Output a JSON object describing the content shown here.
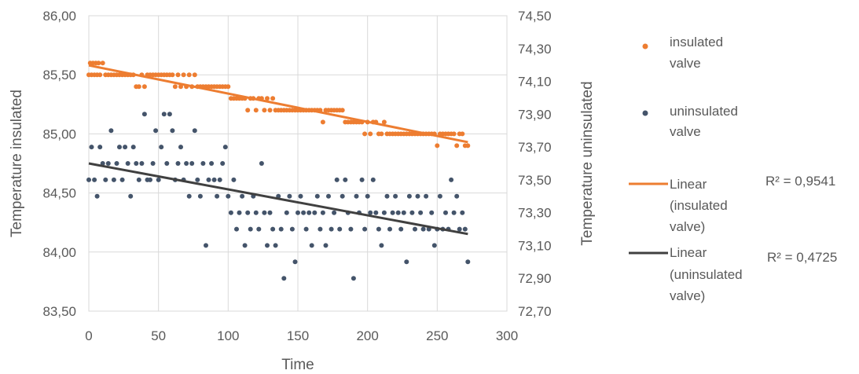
{
  "chart_data": {
    "type": "scatter",
    "x_label": "Time",
    "y_label_left": "Temperature insulated",
    "y_label_right": "Temperature uninsulated",
    "x_range": [
      0,
      300
    ],
    "x_ticks": [
      "0",
      "50",
      "100",
      "150",
      "200",
      "250",
      "300"
    ],
    "y_left_range": [
      83.5,
      86.0
    ],
    "y_left_ticks": [
      "83,50",
      "84,00",
      "84,50",
      "85,00",
      "85,50",
      "86,00"
    ],
    "y_right_range": [
      72.7,
      74.5
    ],
    "y_right_ticks": [
      "72,70",
      "72,90",
      "73,10",
      "73,30",
      "73,50",
      "73,70",
      "73,90",
      "74,10",
      "74,30",
      "74,50"
    ],
    "grid": true,
    "legend_position": "right",
    "colors": {
      "insulated": "#ED7D31",
      "uninsulated": "#44546A",
      "trend_uninsulated": "#404040",
      "grid": "#D9D9D9"
    },
    "series": [
      {
        "name": "insulated valve",
        "axis": "left",
        "points": [
          [
            0,
            85.5
          ],
          [
            1,
            85.6
          ],
          [
            2,
            85.5
          ],
          [
            3,
            85.6
          ],
          [
            4,
            85.5
          ],
          [
            5,
            85.6
          ],
          [
            6,
            85.5
          ],
          [
            7,
            85.6
          ],
          [
            8,
            85.5
          ],
          [
            10,
            85.6
          ],
          [
            12,
            85.5
          ],
          [
            14,
            85.5
          ],
          [
            16,
            85.5
          ],
          [
            18,
            85.5
          ],
          [
            20,
            85.5
          ],
          [
            22,
            85.5
          ],
          [
            24,
            85.5
          ],
          [
            26,
            85.5
          ],
          [
            28,
            85.5
          ],
          [
            30,
            85.5
          ],
          [
            32,
            85.5
          ],
          [
            34,
            85.4
          ],
          [
            36,
            85.4
          ],
          [
            38,
            85.5
          ],
          [
            40,
            85.4
          ],
          [
            42,
            85.5
          ],
          [
            44,
            85.5
          ],
          [
            46,
            85.5
          ],
          [
            48,
            85.5
          ],
          [
            50,
            85.5
          ],
          [
            52,
            85.5
          ],
          [
            54,
            85.5
          ],
          [
            56,
            85.5
          ],
          [
            58,
            85.5
          ],
          [
            60,
            85.5
          ],
          [
            62,
            85.4
          ],
          [
            64,
            85.5
          ],
          [
            66,
            85.4
          ],
          [
            68,
            85.5
          ],
          [
            70,
            85.4
          ],
          [
            72,
            85.5
          ],
          [
            74,
            85.4
          ],
          [
            76,
            85.5
          ],
          [
            78,
            85.4
          ],
          [
            80,
            85.4
          ],
          [
            82,
            85.4
          ],
          [
            84,
            85.4
          ],
          [
            86,
            85.4
          ],
          [
            88,
            85.4
          ],
          [
            90,
            85.4
          ],
          [
            92,
            85.4
          ],
          [
            94,
            85.4
          ],
          [
            96,
            85.4
          ],
          [
            98,
            85.4
          ],
          [
            100,
            85.4
          ],
          [
            102,
            85.3
          ],
          [
            104,
            85.3
          ],
          [
            106,
            85.3
          ],
          [
            108,
            85.3
          ],
          [
            110,
            85.3
          ],
          [
            112,
            85.3
          ],
          [
            114,
            85.2
          ],
          [
            116,
            85.3
          ],
          [
            118,
            85.3
          ],
          [
            120,
            85.2
          ],
          [
            122,
            85.3
          ],
          [
            124,
            85.3
          ],
          [
            126,
            85.2
          ],
          [
            128,
            85.3
          ],
          [
            130,
            85.2
          ],
          [
            132,
            85.3
          ],
          [
            134,
            85.2
          ],
          [
            136,
            85.2
          ],
          [
            138,
            85.2
          ],
          [
            140,
            85.2
          ],
          [
            142,
            85.2
          ],
          [
            144,
            85.2
          ],
          [
            146,
            85.2
          ],
          [
            148,
            85.2
          ],
          [
            150,
            85.2
          ],
          [
            152,
            85.2
          ],
          [
            154,
            85.2
          ],
          [
            156,
            85.2
          ],
          [
            158,
            85.2
          ],
          [
            160,
            85.2
          ],
          [
            162,
            85.2
          ],
          [
            164,
            85.2
          ],
          [
            166,
            85.2
          ],
          [
            168,
            85.1
          ],
          [
            170,
            85.2
          ],
          [
            172,
            85.2
          ],
          [
            174,
            85.2
          ],
          [
            176,
            85.2
          ],
          [
            178,
            85.2
          ],
          [
            180,
            85.2
          ],
          [
            182,
            85.2
          ],
          [
            184,
            85.1
          ],
          [
            186,
            85.1
          ],
          [
            188,
            85.1
          ],
          [
            190,
            85.1
          ],
          [
            192,
            85.1
          ],
          [
            194,
            85.1
          ],
          [
            196,
            85.1
          ],
          [
            198,
            85.0
          ],
          [
            200,
            85.1
          ],
          [
            202,
            85.0
          ],
          [
            204,
            85.1
          ],
          [
            206,
            85.1
          ],
          [
            208,
            85.0
          ],
          [
            210,
            85.0
          ],
          [
            212,
            85.1
          ],
          [
            214,
            85.0
          ],
          [
            216,
            85.0
          ],
          [
            218,
            85.0
          ],
          [
            220,
            85.0
          ],
          [
            222,
            85.0
          ],
          [
            224,
            85.0
          ],
          [
            226,
            85.0
          ],
          [
            228,
            85.0
          ],
          [
            230,
            85.0
          ],
          [
            232,
            85.0
          ],
          [
            234,
            85.0
          ],
          [
            236,
            85.0
          ],
          [
            238,
            85.0
          ],
          [
            240,
            85.0
          ],
          [
            242,
            85.0
          ],
          [
            244,
            85.0
          ],
          [
            246,
            85.0
          ],
          [
            248,
            85.0
          ],
          [
            250,
            84.9
          ],
          [
            252,
            85.0
          ],
          [
            254,
            85.0
          ],
          [
            256,
            85.0
          ],
          [
            258,
            85.0
          ],
          [
            260,
            85.0
          ],
          [
            262,
            85.0
          ],
          [
            264,
            84.9
          ],
          [
            266,
            85.0
          ],
          [
            268,
            85.0
          ],
          [
            270,
            84.9
          ],
          [
            272,
            84.9
          ]
        ]
      },
      {
        "name": "uninsulated valve",
        "axis": "right",
        "points": [
          [
            0,
            73.5
          ],
          [
            2,
            73.7
          ],
          [
            4,
            73.5
          ],
          [
            6,
            73.4
          ],
          [
            8,
            73.7
          ],
          [
            10,
            73.6
          ],
          [
            12,
            73.5
          ],
          [
            14,
            73.6
          ],
          [
            16,
            73.8
          ],
          [
            18,
            73.5
          ],
          [
            20,
            73.6
          ],
          [
            22,
            73.7
          ],
          [
            24,
            73.5
          ],
          [
            26,
            73.7
          ],
          [
            28,
            73.6
          ],
          [
            30,
            73.4
          ],
          [
            32,
            73.7
          ],
          [
            34,
            73.6
          ],
          [
            36,
            73.5
          ],
          [
            38,
            73.6
          ],
          [
            40,
            73.9
          ],
          [
            42,
            73.5
          ],
          [
            44,
            73.5
          ],
          [
            46,
            73.6
          ],
          [
            48,
            73.8
          ],
          [
            50,
            73.5
          ],
          [
            52,
            73.7
          ],
          [
            54,
            73.9
          ],
          [
            56,
            73.6
          ],
          [
            58,
            73.9
          ],
          [
            60,
            73.8
          ],
          [
            62,
            73.5
          ],
          [
            64,
            73.6
          ],
          [
            66,
            73.7
          ],
          [
            68,
            73.5
          ],
          [
            70,
            73.6
          ],
          [
            72,
            73.4
          ],
          [
            74,
            73.6
          ],
          [
            76,
            73.8
          ],
          [
            78,
            73.5
          ],
          [
            80,
            73.4
          ],
          [
            82,
            73.6
          ],
          [
            84,
            73.1
          ],
          [
            86,
            73.5
          ],
          [
            88,
            73.6
          ],
          [
            90,
            73.5
          ],
          [
            92,
            73.4
          ],
          [
            94,
            73.5
          ],
          [
            96,
            73.6
          ],
          [
            98,
            73.7
          ],
          [
            100,
            73.4
          ],
          [
            102,
            73.3
          ],
          [
            104,
            73.5
          ],
          [
            106,
            73.2
          ],
          [
            108,
            73.3
          ],
          [
            110,
            73.4
          ],
          [
            112,
            73.1
          ],
          [
            114,
            73.3
          ],
          [
            116,
            73.2
          ],
          [
            118,
            73.4
          ],
          [
            120,
            73.3
          ],
          [
            122,
            73.2
          ],
          [
            124,
            73.6
          ],
          [
            126,
            73.3
          ],
          [
            128,
            73.1
          ],
          [
            130,
            73.3
          ],
          [
            132,
            73.2
          ],
          [
            134,
            73.1
          ],
          [
            136,
            73.4
          ],
          [
            138,
            73.2
          ],
          [
            140,
            72.9
          ],
          [
            142,
            73.3
          ],
          [
            144,
            73.4
          ],
          [
            146,
            73.2
          ],
          [
            148,
            73.0
          ],
          [
            150,
            73.3
          ],
          [
            152,
            73.4
          ],
          [
            154,
            73.3
          ],
          [
            156,
            73.2
          ],
          [
            158,
            73.3
          ],
          [
            160,
            73.1
          ],
          [
            162,
            73.3
          ],
          [
            164,
            73.4
          ],
          [
            166,
            73.2
          ],
          [
            168,
            73.3
          ],
          [
            170,
            73.1
          ],
          [
            172,
            73.4
          ],
          [
            174,
            73.2
          ],
          [
            176,
            73.3
          ],
          [
            178,
            73.5
          ],
          [
            180,
            73.2
          ],
          [
            182,
            73.4
          ],
          [
            184,
            73.5
          ],
          [
            186,
            73.3
          ],
          [
            188,
            73.2
          ],
          [
            190,
            72.9
          ],
          [
            192,
            73.4
          ],
          [
            194,
            73.3
          ],
          [
            196,
            73.5
          ],
          [
            198,
            73.2
          ],
          [
            200,
            73.4
          ],
          [
            202,
            73.3
          ],
          [
            204,
            73.5
          ],
          [
            206,
            73.3
          ],
          [
            208,
            73.2
          ],
          [
            210,
            73.1
          ],
          [
            212,
            73.3
          ],
          [
            214,
            73.4
          ],
          [
            216,
            73.2
          ],
          [
            218,
            73.3
          ],
          [
            220,
            73.4
          ],
          [
            222,
            73.3
          ],
          [
            224,
            73.2
          ],
          [
            226,
            73.3
          ],
          [
            228,
            73.0
          ],
          [
            230,
            73.4
          ],
          [
            232,
            73.3
          ],
          [
            234,
            73.2
          ],
          [
            236,
            73.4
          ],
          [
            238,
            73.3
          ],
          [
            240,
            73.2
          ],
          [
            242,
            73.4
          ],
          [
            244,
            73.2
          ],
          [
            246,
            73.3
          ],
          [
            248,
            73.1
          ],
          [
            250,
            73.2
          ],
          [
            252,
            73.4
          ],
          [
            254,
            73.2
          ],
          [
            256,
            73.3
          ],
          [
            258,
            73.2
          ],
          [
            260,
            73.5
          ],
          [
            262,
            73.3
          ],
          [
            264,
            73.4
          ],
          [
            266,
            73.2
          ],
          [
            268,
            73.3
          ],
          [
            270,
            73.2
          ],
          [
            272,
            73.0
          ]
        ]
      }
    ],
    "trendlines": [
      {
        "name": "Linear (insulated valve)",
        "axis": "left",
        "from": [
          0,
          85.58
        ],
        "to": [
          272,
          84.93
        ],
        "r2": "R² = 0,9541"
      },
      {
        "name": "Linear (uninsulated valve)",
        "axis": "right",
        "from": [
          0,
          73.6
        ],
        "to": [
          272,
          73.17
        ],
        "r2": "R² = 0,4725"
      }
    ],
    "legend": {
      "insulated_lines": [
        "insulated",
        "valve"
      ],
      "uninsulated_lines": [
        "uninsulated",
        "valve"
      ],
      "trend_insulated_lines": [
        "Linear",
        "(insulated",
        "valve)"
      ],
      "trend_uninsulated_lines": [
        "Linear",
        "(uninsulated",
        "valve)"
      ]
    }
  }
}
